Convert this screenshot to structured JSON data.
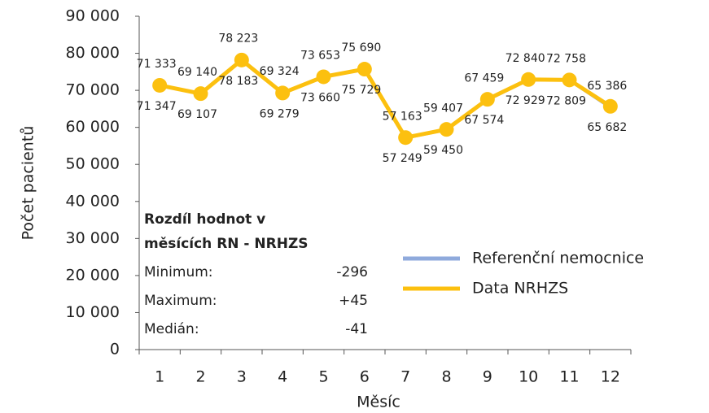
{
  "chart_data": {
    "type": "line",
    "x_label": "Měsíc",
    "y_label": "Počet pacientů",
    "categories": [
      "1",
      "2",
      "3",
      "4",
      "5",
      "6",
      "7",
      "8",
      "9",
      "10",
      "11",
      "12"
    ],
    "series": [
      {
        "name": "Referenční nemocnice",
        "color": "#8faadc",
        "values": [
          71333,
          69140,
          78223,
          69324,
          73653,
          75690,
          57163,
          59407,
          67459,
          72840,
          72758,
          65386
        ],
        "value_labels": [
          "71 333",
          "69 140",
          "78 223",
          "69 324",
          "73 653",
          "75 690",
          "57 163",
          "59 407",
          "67 459",
          "72 840",
          "72 758",
          "65 386"
        ]
      },
      {
        "name": "Data NRHZS",
        "color": "#fcc00f",
        "values": [
          71347,
          69107,
          78183,
          69279,
          73660,
          75729,
          57249,
          59450,
          67574,
          72929,
          72809,
          65682
        ],
        "value_labels": [
          "71 347",
          "69 107",
          "78 183",
          "69 279",
          "73 660",
          "75 729",
          "57 249",
          "59 450",
          "67 574",
          "72 929",
          "72 809",
          "65 682"
        ]
      }
    ],
    "ylim": [
      0,
      90000
    ],
    "yticks": [
      0,
      {
        "value": 10000,
        "label": "10 000"
      },
      {
        "value": 20000,
        "label": "20 000"
      },
      {
        "value": 30000,
        "label": "30 000"
      },
      {
        "value": 40000,
        "label": "40 000"
      },
      {
        "value": 50000,
        "label": "50 000"
      },
      {
        "value": 60000,
        "label": "60 000"
      },
      {
        "value": 70000,
        "label": "70 000"
      },
      {
        "value": 80000,
        "label": "80 000"
      },
      {
        "value": 90000,
        "label": "90 000"
      }
    ],
    "grid": false,
    "legend": "right",
    "annotation": {
      "title_lines": [
        "Rozdíl hodnot v",
        "měsících RN - NRHZS"
      ],
      "rows": [
        {
          "label": "Minimum:",
          "value": "-296"
        },
        {
          "label": "Maximum:",
          "value": "+45"
        },
        {
          "label": "Medián:",
          "value": "-41"
        }
      ]
    }
  }
}
